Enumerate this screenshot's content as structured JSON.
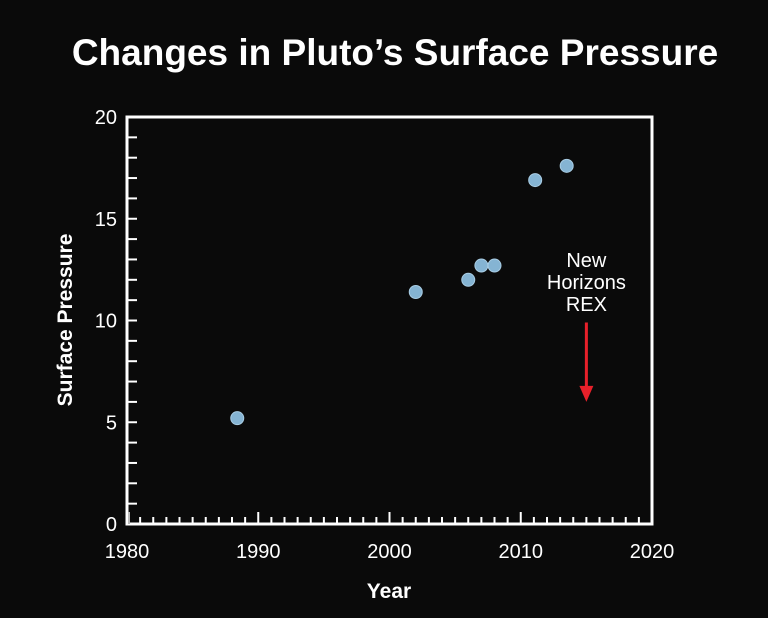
{
  "chart_data": {
    "type": "scatter",
    "title": "Changes in Pluto’s Surface Pressure",
    "xlabel": "Year",
    "ylabel": "Surface Pressure",
    "xlim": [
      1980,
      2020
    ],
    "ylim": [
      0,
      20
    ],
    "x_ticks": [
      1980,
      1990,
      2000,
      2010,
      2020
    ],
    "x_tick_labels": [
      "1980",
      "1990",
      "2000",
      "2010",
      "2020"
    ],
    "x_minor_step": 1,
    "y_ticks": [
      0,
      5,
      10,
      15,
      20
    ],
    "y_tick_labels": [
      "0",
      "5",
      "10",
      "15",
      "20"
    ],
    "y_minor_step": 1,
    "grid": false,
    "legend": null,
    "series": [
      {
        "name": "Surface Pressure",
        "color": "#85b4d3",
        "points": [
          {
            "x": 1988.4,
            "y": 5.2
          },
          {
            "x": 2002.0,
            "y": 11.4
          },
          {
            "x": 2006.0,
            "y": 12.0
          },
          {
            "x": 2007.0,
            "y": 12.7
          },
          {
            "x": 2008.0,
            "y": 12.7
          },
          {
            "x": 2011.1,
            "y": 16.9
          },
          {
            "x": 2013.5,
            "y": 17.6
          }
        ]
      }
    ],
    "annotations": [
      {
        "lines": [
          "New",
          "Horizons",
          "REX"
        ],
        "x": 2015,
        "arrow_from_y": 9.9,
        "arrow_to_y": 6.0,
        "arrow_color": "#e8202a"
      }
    ]
  },
  "colors": {
    "background": "#0a0a0a",
    "axes": "#ffffff",
    "text": "#ffffff"
  }
}
